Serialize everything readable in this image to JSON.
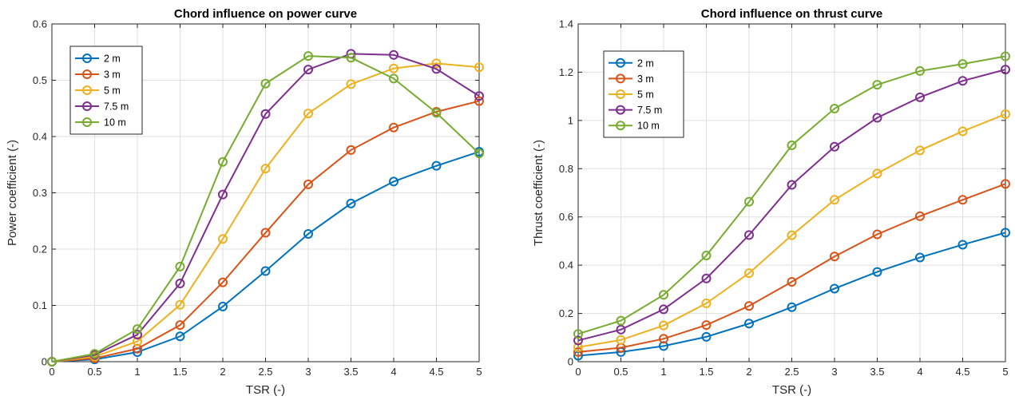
{
  "colors": {
    "2 m": "#0072BD",
    "3 m": "#D95319",
    "5 m": "#EDB120",
    "7.5 m": "#7E2F8E",
    "10 m": "#77AC30"
  },
  "chart_data": [
    {
      "type": "line",
      "title": "Chord influence on power curve",
      "xlabel": "TSR (-)",
      "ylabel": "Power coefficient (-)",
      "xlim": [
        0,
        5
      ],
      "ylim": [
        0,
        0.6
      ],
      "xticks": [
        0,
        0.5,
        1,
        1.5,
        2,
        2.5,
        3,
        3.5,
        4,
        4.5,
        5
      ],
      "yticks": [
        0,
        0.1,
        0.2,
        0.3,
        0.4,
        0.5,
        0.6
      ],
      "grid": true,
      "legend_position": "top-left",
      "marker": "circle",
      "x": [
        0,
        0.5,
        1,
        1.5,
        2,
        2.5,
        3,
        3.5,
        4,
        4.5,
        5
      ],
      "series": [
        {
          "name": "2 m",
          "values": [
            0,
            0.004,
            0.017,
            0.045,
            0.098,
            0.161,
            0.227,
            0.281,
            0.32,
            0.348,
            0.373
          ]
        },
        {
          "name": "3 m",
          "values": [
            0,
            0.006,
            0.023,
            0.065,
            0.141,
            0.229,
            0.315,
            0.376,
            0.416,
            0.444,
            0.463
          ]
        },
        {
          "name": "5 m",
          "values": [
            0,
            0.009,
            0.036,
            0.101,
            0.218,
            0.343,
            0.441,
            0.493,
            0.521,
            0.53,
            0.523
          ]
        },
        {
          "name": "7.5 m",
          "values": [
            0,
            0.012,
            0.048,
            0.139,
            0.297,
            0.44,
            0.519,
            0.547,
            0.545,
            0.52,
            0.472
          ]
        },
        {
          "name": "10 m",
          "values": [
            0,
            0.014,
            0.058,
            0.169,
            0.355,
            0.494,
            0.543,
            0.54,
            0.503,
            0.442,
            0.37
          ]
        }
      ]
    },
    {
      "type": "line",
      "title": "Chord influence on thrust curve",
      "xlabel": "TSR (-)",
      "ylabel": "Thrust coefficient (-)",
      "xlim": [
        0,
        5
      ],
      "ylim": [
        0,
        1.4
      ],
      "xticks": [
        0,
        0.5,
        1,
        1.5,
        2,
        2.5,
        3,
        3.5,
        4,
        4.5,
        5
      ],
      "yticks": [
        0,
        0.2,
        0.4,
        0.6,
        0.8,
        1,
        1.2,
        1.4
      ],
      "grid": true,
      "legend_position": "top-left",
      "marker": "circle",
      "x": [
        0,
        0.5,
        1,
        1.5,
        2,
        2.5,
        3,
        3.5,
        4,
        4.5,
        5
      ],
      "series": [
        {
          "name": "2 m",
          "values": [
            0.025,
            0.04,
            0.065,
            0.103,
            0.158,
            0.226,
            0.303,
            0.372,
            0.432,
            0.485,
            0.535
          ]
        },
        {
          "name": "3 m",
          "values": [
            0.04,
            0.058,
            0.095,
            0.152,
            0.231,
            0.331,
            0.436,
            0.528,
            0.603,
            0.671,
            0.737
          ]
        },
        {
          "name": "5 m",
          "values": [
            0.06,
            0.09,
            0.15,
            0.242,
            0.367,
            0.524,
            0.671,
            0.78,
            0.876,
            0.955,
            1.026
          ]
        },
        {
          "name": "7.5 m",
          "values": [
            0.088,
            0.133,
            0.217,
            0.345,
            0.525,
            0.733,
            0.891,
            1.011,
            1.096,
            1.164,
            1.211
          ]
        },
        {
          "name": "10 m",
          "values": [
            0.115,
            0.17,
            0.277,
            0.44,
            0.663,
            0.897,
            1.049,
            1.148,
            1.205,
            1.234,
            1.266
          ]
        }
      ]
    }
  ]
}
